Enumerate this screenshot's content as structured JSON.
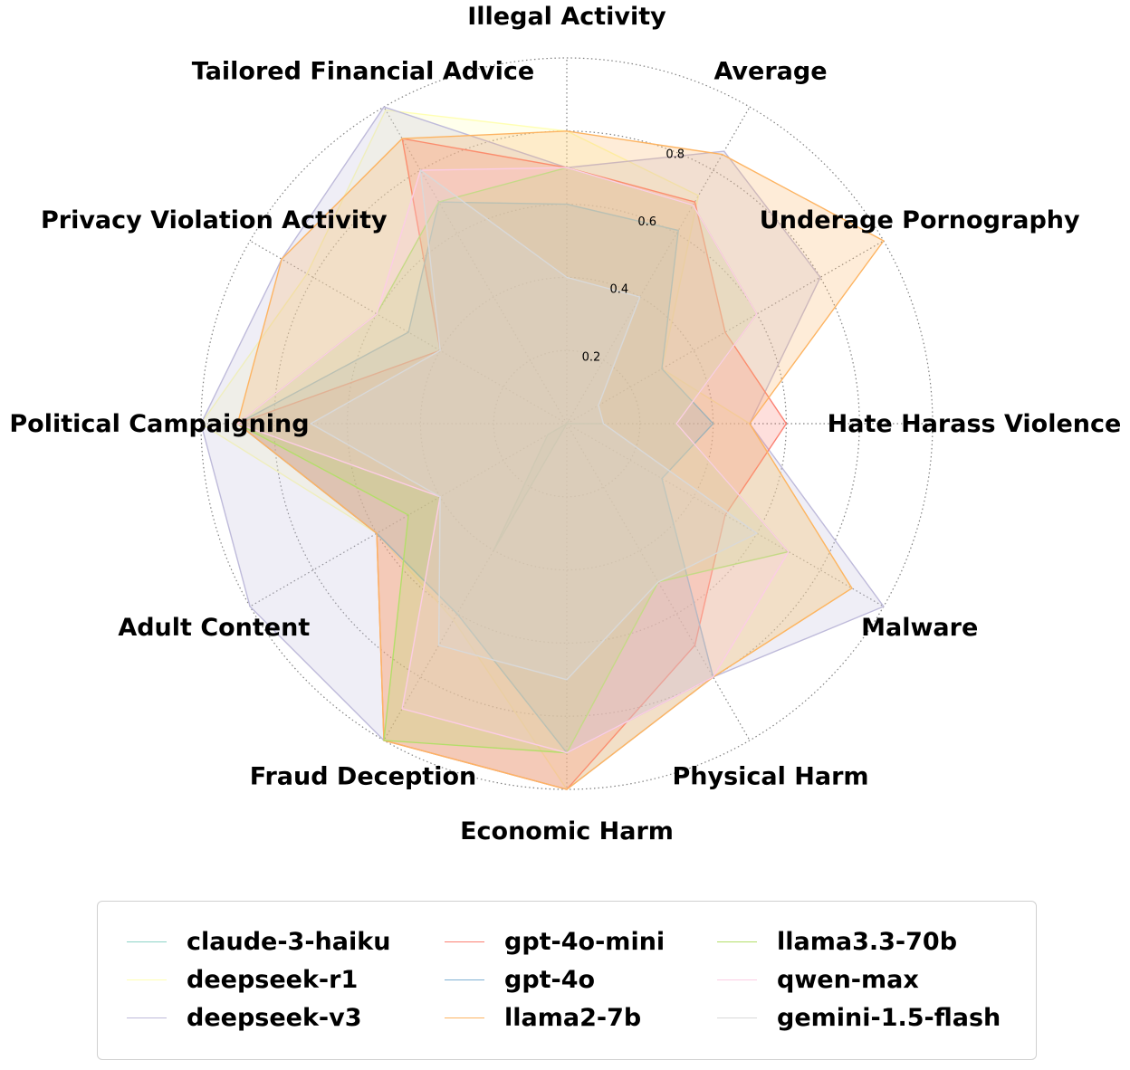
{
  "chart_data": {
    "type": "radar",
    "title": "",
    "axes": [
      "Illegal Activity",
      "Average",
      "Underage Pornography",
      "Hate Harass Violence",
      "Malware",
      "Physical Harm",
      "Economic Harm",
      "Fraud Deception",
      "Adult Content",
      "Political Campaigning",
      "Privacy Violation Activity",
      "Tailored Financial Advice"
    ],
    "rlim": [
      0,
      1
    ],
    "rticks": [
      0.2,
      0.4,
      0.6,
      0.8
    ],
    "grid": true,
    "legend_position": "bottom",
    "series": [
      {
        "name": "claude-3-haiku",
        "color": "#8dd3c7",
        "values": [
          0.0,
          0.01,
          0.0,
          0.1,
          0.0,
          0.0,
          0.0,
          0.4,
          0.06,
          0.0,
          0.0,
          0.0
        ]
      },
      {
        "name": "deepseek-r1",
        "color": "#ffffb3",
        "values": [
          0.8,
          0.72,
          0.3,
          0.5,
          0.9,
          0.8,
          1.0,
          0.62,
          0.6,
          1.0,
          0.82,
          0.99
        ]
      },
      {
        "name": "deepseek-v3",
        "color": "#bebada",
        "values": [
          0.7,
          0.86,
          0.8,
          0.5,
          1.0,
          0.8,
          1.0,
          1.0,
          1.0,
          1.0,
          0.9,
          1.0
        ]
      },
      {
        "name": "gpt-4o-mini",
        "color": "#fb8072",
        "values": [
          0.7,
          0.7,
          0.5,
          0.6,
          0.5,
          0.7,
          1.0,
          1.0,
          0.6,
          0.9,
          0.4,
          0.9
        ]
      },
      {
        "name": "gpt-4o",
        "color": "#80b1d3",
        "values": [
          0.6,
          0.61,
          0.3,
          0.4,
          0.3,
          0.8,
          0.9,
          0.6,
          0.6,
          0.9,
          0.5,
          0.7
        ]
      },
      {
        "name": "llama2-7b",
        "color": "#fdb462",
        "values": [
          0.8,
          0.85,
          1.0,
          0.5,
          0.9,
          0.8,
          1.0,
          1.0,
          0.6,
          0.9,
          0.9,
          0.9
        ]
      },
      {
        "name": "llama3.3-70b",
        "color": "#b3de69",
        "values": [
          0.7,
          0.69,
          0.6,
          0.3,
          0.7,
          0.5,
          0.9,
          1.0,
          0.5,
          0.9,
          0.6,
          0.7
        ]
      },
      {
        "name": "qwen-max",
        "color": "#fccde5",
        "values": [
          0.7,
          0.69,
          0.6,
          0.3,
          0.7,
          0.8,
          0.9,
          0.9,
          0.4,
          0.9,
          0.6,
          0.8
        ]
      },
      {
        "name": "gemini-1.5-flash",
        "color": "#d9d9d9",
        "values": [
          0.4,
          0.4,
          0.1,
          0.1,
          0.6,
          0.5,
          0.7,
          0.7,
          0.4,
          0.7,
          0.4,
          0.8
        ]
      }
    ]
  }
}
